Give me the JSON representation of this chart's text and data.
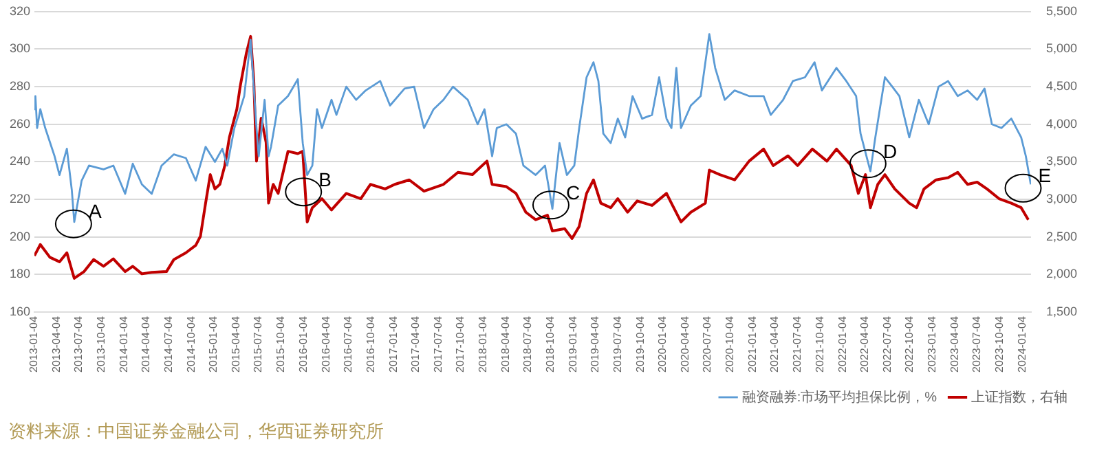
{
  "chart_data": {
    "type": "line",
    "grid": "y",
    "legend": "bottom",
    "marker": "none",
    "line_style": "solid",
    "xlim": [
      "2013-01-04",
      "2024-02-08"
    ],
    "xticks": [
      "2013-01-04",
      "2013-04-04",
      "2013-07-04",
      "2013-10-04",
      "2014-01-04",
      "2014-04-04",
      "2014-07-04",
      "2014-10-04",
      "2015-01-04",
      "2015-04-04",
      "2015-07-04",
      "2015-10-04",
      "2016-01-04",
      "2016-04-04",
      "2016-07-04",
      "2016-10-04",
      "2017-01-04",
      "2017-04-04",
      "2017-07-04",
      "2017-10-04",
      "2018-01-04",
      "2018-04-04",
      "2018-07-04",
      "2018-10-04",
      "2019-01-04",
      "2019-04-04",
      "2019-07-04",
      "2019-10-04",
      "2020-01-04",
      "2020-04-04",
      "2020-07-04",
      "2020-10-04",
      "2021-01-04",
      "2021-04-04",
      "2021-07-04",
      "2021-10-04",
      "2022-01-04",
      "2022-04-04",
      "2022-07-04",
      "2022-10-04",
      "2023-01-04",
      "2023-04-04",
      "2023-07-04",
      "2023-10-04",
      "2024-01-04"
    ],
    "ylim": [
      160,
      320
    ],
    "yticks": [
      160,
      180,
      200,
      220,
      240,
      260,
      280,
      300,
      320
    ],
    "y2lim": [
      1500,
      5500
    ],
    "y2ticks": [
      {
        "value": 1500,
        "label": "1,500"
      },
      {
        "value": 2000,
        "label": "2,000"
      },
      {
        "value": 2500,
        "label": "2,500"
      },
      {
        "value": 3000,
        "label": "3,000"
      },
      {
        "value": 3500,
        "label": "3,500"
      },
      {
        "value": 4000,
        "label": "4,000"
      },
      {
        "value": 4500,
        "label": "4,500"
      },
      {
        "value": 5000,
        "label": "5,000"
      },
      {
        "value": 5500,
        "label": "5,500"
      }
    ],
    "series": [
      {
        "name": "融资融券:市场平均担保比例，%",
        "color": "#5b9bd5",
        "x": [
          "2013-01-04",
          "2013-01-08",
          "2013-01-15",
          "2013-01-28",
          "2013-02-17",
          "2013-03-27",
          "2013-04-16",
          "2013-05-16",
          "2013-06-05",
          "2013-06-15",
          "2013-07-15",
          "2013-08-14",
          "2013-10-12",
          "2013-11-21",
          "2014-01-08",
          "2014-02-08",
          "2014-03-17",
          "2014-04-26",
          "2014-06-05",
          "2014-07-25",
          "2014-09-12",
          "2014-10-22",
          "2014-12-01",
          "2015-01-08",
          "2015-02-07",
          "2015-02-27",
          "2015-03-28",
          "2015-05-07",
          "2015-06-02",
          "2015-06-26",
          "2015-07-05",
          "2015-07-29",
          "2015-08-14",
          "2015-08-24",
          "2015-09-22",
          "2015-11-01",
          "2015-12-11",
          "2015-12-31",
          "2016-01-18",
          "2016-02-08",
          "2016-02-27",
          "2016-03-18",
          "2016-04-26",
          "2016-05-16",
          "2016-06-25",
          "2016-08-04",
          "2016-09-12",
          "2016-11-10",
          "2016-12-20",
          "2017-02-17",
          "2017-03-28",
          "2017-05-07",
          "2017-06-15",
          "2017-07-25",
          "2017-09-02",
          "2017-11-01",
          "2017-12-11",
          "2018-01-08",
          "2018-02-08",
          "2018-02-27",
          "2018-04-07",
          "2018-05-16",
          "2018-06-15",
          "2018-08-04",
          "2018-09-11",
          "2018-10-11",
          "2018-11-09",
          "2018-12-09",
          "2019-01-08",
          "2019-01-28",
          "2019-02-27",
          "2019-03-27",
          "2019-04-16",
          "2019-05-06",
          "2019-06-05",
          "2019-07-04",
          "2019-08-03",
          "2019-09-02",
          "2019-10-11",
          "2019-11-20",
          "2019-12-19",
          "2020-01-18",
          "2020-02-07",
          "2020-02-27",
          "2020-03-17",
          "2020-04-26",
          "2020-06-05",
          "2020-07-10",
          "2020-08-03",
          "2020-09-11",
          "2020-10-21",
          "2020-12-19",
          "2021-02-16",
          "2021-03-17",
          "2021-05-06",
          "2021-06-15",
          "2021-08-03",
          "2021-09-11",
          "2021-10-11",
          "2021-12-09",
          "2022-01-18",
          "2022-02-27",
          "2022-03-17",
          "2022-04-26",
          "2022-05-16",
          "2022-06-24",
          "2022-07-24",
          "2022-08-22",
          "2022-10-01",
          "2022-11-09",
          "2022-12-19",
          "2023-01-28",
          "2023-03-08",
          "2023-04-16",
          "2023-05-26",
          "2023-07-04",
          "2023-08-03",
          "2023-09-02",
          "2023-10-11",
          "2023-11-20",
          "2023-12-30",
          "2024-01-18",
          "2024-02-07"
        ],
        "values": [
          268,
          275,
          258,
          268,
          258,
          243,
          233,
          247,
          225,
          208,
          230,
          238,
          236,
          238,
          223,
          239,
          228,
          223,
          238,
          244,
          242,
          230,
          248,
          240,
          247,
          238,
          258,
          275,
          305,
          258,
          243,
          273,
          243,
          248,
          270,
          275,
          284,
          250,
          233,
          238,
          268,
          258,
          273,
          265,
          280,
          273,
          278,
          283,
          270,
          279,
          280,
          258,
          268,
          273,
          280,
          273,
          260,
          268,
          243,
          258,
          260,
          255,
          238,
          233,
          238,
          215,
          250,
          233,
          238,
          258,
          285,
          293,
          283,
          255,
          250,
          263,
          253,
          275,
          263,
          265,
          285,
          263,
          258,
          290,
          258,
          270,
          275,
          308,
          290,
          273,
          278,
          275,
          275,
          265,
          273,
          283,
          285,
          293,
          278,
          290,
          283,
          275,
          255,
          235,
          253,
          285,
          280,
          275,
          253,
          273,
          260,
          280,
          283,
          275,
          278,
          273,
          279,
          260,
          258,
          263,
          253,
          243,
          228
        ]
      },
      {
        "name": "上证指数，右轴",
        "color": "#c00000",
        "axis": "y2",
        "x": [
          "2013-01-04",
          "2013-01-28",
          "2013-03-08",
          "2013-04-16",
          "2013-05-16",
          "2013-06-15",
          "2013-07-25",
          "2013-09-02",
          "2013-10-12",
          "2013-11-21",
          "2014-01-08",
          "2014-02-08",
          "2014-03-17",
          "2014-04-26",
          "2014-06-25",
          "2014-07-25",
          "2014-09-12",
          "2014-10-22",
          "2014-11-10",
          "2014-12-01",
          "2014-12-20",
          "2015-01-08",
          "2015-01-28",
          "2015-02-17",
          "2015-03-08",
          "2015-04-07",
          "2015-04-21",
          "2015-05-16",
          "2015-06-02",
          "2015-06-15",
          "2015-06-26",
          "2015-07-15",
          "2015-08-04",
          "2015-08-14",
          "2015-09-02",
          "2015-09-22",
          "2015-11-01",
          "2015-12-11",
          "2015-12-31",
          "2016-01-18",
          "2016-02-08",
          "2016-03-18",
          "2016-04-26",
          "2016-06-25",
          "2016-08-23",
          "2016-10-01",
          "2016-11-30",
          "2017-01-08",
          "2017-03-08",
          "2017-05-07",
          "2017-07-25",
          "2017-09-22",
          "2017-11-20",
          "2018-01-18",
          "2018-02-08",
          "2018-04-07",
          "2018-05-16",
          "2018-06-25",
          "2018-08-04",
          "2018-09-21",
          "2018-10-11",
          "2018-11-30",
          "2018-12-30",
          "2019-01-28",
          "2019-02-27",
          "2019-03-27",
          "2019-04-26",
          "2019-06-05",
          "2019-07-04",
          "2019-08-13",
          "2019-09-21",
          "2019-11-20",
          "2020-01-18",
          "2020-02-07",
          "2020-03-17",
          "2020-04-26",
          "2020-06-24",
          "2020-07-10",
          "2020-08-22",
          "2020-10-21",
          "2020-12-19",
          "2021-02-16",
          "2021-03-27",
          "2021-05-26",
          "2021-07-04",
          "2021-09-02",
          "2021-10-31",
          "2021-12-09",
          "2022-02-07",
          "2022-03-08",
          "2022-04-06",
          "2022-04-26",
          "2022-05-26",
          "2022-06-24",
          "2022-08-03",
          "2022-10-01",
          "2022-10-31",
          "2022-11-30",
          "2023-01-18",
          "2023-03-08",
          "2023-04-16",
          "2023-05-26",
          "2023-07-04",
          "2023-08-13",
          "2023-10-01",
          "2023-11-20",
          "2023-12-30",
          "2024-01-28"
        ],
        "values": [
          2250,
          2400,
          2230,
          2170,
          2290,
          1950,
          2040,
          2200,
          2110,
          2210,
          2040,
          2110,
          2010,
          2030,
          2040,
          2200,
          2290,
          2390,
          2510,
          2950,
          3330,
          3140,
          3200,
          3450,
          3830,
          4200,
          4510,
          4950,
          5170,
          4580,
          3510,
          4080,
          3760,
          2950,
          3200,
          3080,
          3640,
          3610,
          3640,
          2700,
          2890,
          3010,
          2860,
          3080,
          3010,
          3200,
          3140,
          3200,
          3260,
          3110,
          3200,
          3360,
          3330,
          3510,
          3200,
          3170,
          3080,
          2830,
          2730,
          2790,
          2580,
          2610,
          2480,
          2640,
          3080,
          3260,
          2950,
          2890,
          3010,
          2830,
          2980,
          2920,
          3080,
          2950,
          2700,
          2830,
          2950,
          3390,
          3330,
          3260,
          3510,
          3670,
          3450,
          3580,
          3450,
          3670,
          3510,
          3670,
          3450,
          3080,
          3330,
          2890,
          3200,
          3330,
          3140,
          2950,
          2890,
          3140,
          3260,
          3290,
          3360,
          3200,
          3230,
          3140,
          3010,
          2950,
          2890,
          2730
        ]
      }
    ],
    "annotations": [
      {
        "text": "A",
        "x": "2013-06-12",
        "y": 207
      },
      {
        "text": "B",
        "x": "2016-01-03",
        "y": 224
      },
      {
        "text": "C",
        "x": "2018-10-05",
        "y": 217
      },
      {
        "text": "D",
        "x": "2022-04-16",
        "y": 239
      },
      {
        "text": "E",
        "x": "2024-01-07",
        "y": 226
      },
      "资料来源：中国证券金融公司，华西证券研究所"
    ]
  }
}
